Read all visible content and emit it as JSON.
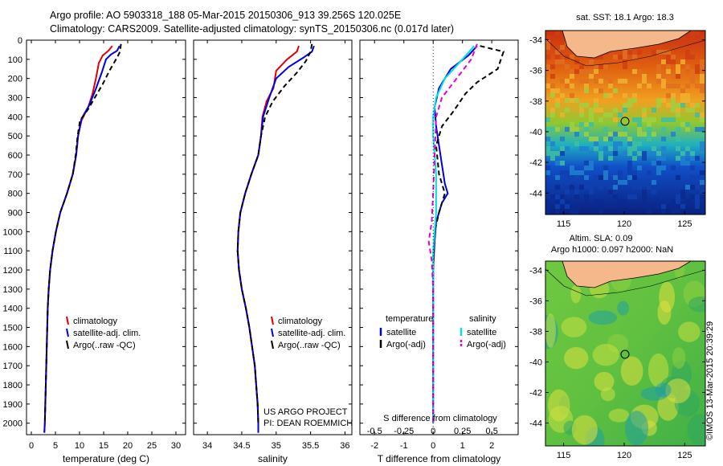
{
  "header": {
    "title_line1": "Argo profile: AO 5903318_188 05-Mar-2015 20150306_913 39.256S 120.025E",
    "title_line2": "Climatology: CARS2009. Satellite-adjusted climatology: synTS_20150306.nc (0.017d later)"
  },
  "footer": {
    "timestamp": "©IMOS 13-Mar-2015 20:39:29",
    "project_line1": "US ARGO PROJECT",
    "project_line2": "PI: DEAN ROEMMICH"
  },
  "colors": {
    "climatology": "#e00000",
    "satellite": "#0000e0",
    "argo": "#000000",
    "sal_satellite": "#00e0e0",
    "sal_argo": "#e000e0"
  },
  "chart_data": [
    {
      "type": "line",
      "panel": "temperature",
      "xlabel": "temperature (deg C)",
      "ylabel": "",
      "xlim": [
        -1,
        32
      ],
      "ylim": [
        2060,
        0
      ],
      "xticks": [
        0,
        5,
        10,
        15,
        20,
        25,
        30
      ],
      "yticks": [
        0,
        100,
        200,
        300,
        400,
        500,
        600,
        700,
        800,
        900,
        1000,
        1100,
        1200,
        1300,
        1400,
        1500,
        1600,
        1700,
        1800,
        1900,
        2000
      ],
      "legend": [
        "climatology",
        "satellite-adj. clim.",
        "Argo(..raw -QC)"
      ],
      "legend_position": "lower-center",
      "series": [
        {
          "name": "climatology",
          "color_key": "climatology",
          "dash": "",
          "points": [
            [
              16.8,
              30
            ],
            [
              16.0,
              55
            ],
            [
              14.8,
              80
            ],
            [
              14.0,
              120
            ],
            [
              13.4,
              200
            ],
            [
              12.7,
              280
            ],
            [
              11.8,
              350
            ],
            [
              10.4,
              420
            ],
            [
              9.7,
              500
            ],
            [
              9.3,
              600
            ],
            [
              8.6,
              700
            ],
            [
              7.4,
              800
            ],
            [
              6.0,
              900
            ],
            [
              5.1,
              1000
            ],
            [
              4.4,
              1100
            ],
            [
              3.9,
              1200
            ],
            [
              3.6,
              1300
            ],
            [
              3.4,
              1400
            ],
            [
              3.2,
              1600
            ],
            [
              3.0,
              1800
            ],
            [
              2.8,
              2000
            ],
            [
              2.7,
              2050
            ]
          ]
        },
        {
          "name": "satellite-adj. clim.",
          "color_key": "satellite",
          "dash": "",
          "points": [
            [
              18.3,
              30
            ],
            [
              17.8,
              55
            ],
            [
              16.5,
              75
            ],
            [
              15.5,
              100
            ],
            [
              14.6,
              170
            ],
            [
              13.3,
              260
            ],
            [
              12.0,
              340
            ],
            [
              10.4,
              410
            ],
            [
              9.7,
              500
            ],
            [
              9.3,
              600
            ],
            [
              8.6,
              700
            ],
            [
              7.4,
              800
            ],
            [
              6.0,
              900
            ],
            [
              5.1,
              1000
            ],
            [
              4.4,
              1100
            ],
            [
              3.9,
              1200
            ],
            [
              3.6,
              1300
            ],
            [
              3.4,
              1400
            ],
            [
              3.2,
              1600
            ],
            [
              3.0,
              1800
            ],
            [
              2.8,
              2000
            ],
            [
              2.7,
              2050
            ]
          ]
        },
        {
          "name": "Argo(..raw -QC)",
          "color_key": "argo",
          "dash": "6,4",
          "points": [
            [
              18.6,
              20
            ],
            [
              18.4,
              60
            ],
            [
              17.8,
              90
            ],
            [
              16.2,
              160
            ],
            [
              14.8,
              230
            ],
            [
              13.4,
              290
            ],
            [
              11.8,
              360
            ],
            [
              10.1,
              420
            ],
            [
              9.6,
              500
            ],
            [
              9.2,
              600
            ],
            [
              8.6,
              700
            ],
            [
              7.4,
              800
            ],
            [
              6.0,
              900
            ],
            [
              5.1,
              1000
            ],
            [
              4.4,
              1100
            ],
            [
              3.9,
              1200
            ],
            [
              3.6,
              1300
            ],
            [
              3.4,
              1400
            ],
            [
              3.2,
              1600
            ],
            [
              3.0,
              1800
            ],
            [
              2.8,
              2000
            ]
          ]
        }
      ]
    },
    {
      "type": "line",
      "panel": "salinity",
      "xlabel": "salinity",
      "xlim": [
        33.8,
        36.1
      ],
      "ylim": [
        2060,
        0
      ],
      "xticks": [
        34,
        34.5,
        35,
        35.5,
        36
      ],
      "legend": [
        "climatology",
        "satellite-adj. clim.",
        "Argo(..raw -QC)"
      ],
      "legend_position": "lower-right",
      "series": [
        {
          "name": "climatology",
          "color_key": "climatology",
          "dash": "",
          "points": [
            [
              35.33,
              30
            ],
            [
              35.3,
              60
            ],
            [
              35.16,
              100
            ],
            [
              35.0,
              160
            ],
            [
              34.96,
              250
            ],
            [
              34.86,
              320
            ],
            [
              34.8,
              400
            ],
            [
              34.78,
              500
            ],
            [
              34.74,
              600
            ],
            [
              34.64,
              700
            ],
            [
              34.55,
              800
            ],
            [
              34.48,
              900
            ],
            [
              34.45,
              1000
            ],
            [
              34.44,
              1100
            ],
            [
              34.46,
              1200
            ],
            [
              34.5,
              1300
            ],
            [
              34.56,
              1400
            ],
            [
              34.61,
              1500
            ],
            [
              34.65,
              1600
            ],
            [
              34.69,
              1700
            ],
            [
              34.71,
              1800
            ],
            [
              34.73,
              1900
            ],
            [
              34.74,
              2000
            ],
            [
              34.74,
              2050
            ]
          ]
        },
        {
          "name": "satellite-adj. clim.",
          "color_key": "satellite",
          "dash": "",
          "points": [
            [
              35.55,
              30
            ],
            [
              35.52,
              60
            ],
            [
              35.4,
              90
            ],
            [
              35.18,
              140
            ],
            [
              35.0,
              200
            ],
            [
              34.9,
              300
            ],
            [
              34.81,
              400
            ],
            [
              34.78,
              500
            ],
            [
              34.74,
              600
            ],
            [
              34.64,
              700
            ],
            [
              34.55,
              800
            ],
            [
              34.48,
              900
            ],
            [
              34.45,
              1000
            ],
            [
              34.44,
              1100
            ],
            [
              34.46,
              1200
            ],
            [
              34.5,
              1300
            ],
            [
              34.56,
              1400
            ],
            [
              34.61,
              1500
            ],
            [
              34.65,
              1600
            ],
            [
              34.69,
              1700
            ],
            [
              34.71,
              1800
            ],
            [
              34.73,
              1900
            ],
            [
              34.74,
              2000
            ],
            [
              34.74,
              2050
            ]
          ]
        },
        {
          "name": "Argo(..raw -QC)",
          "color_key": "argo",
          "dash": "6,4",
          "points": [
            [
              35.52,
              20
            ],
            [
              35.5,
              60
            ],
            [
              35.43,
              110
            ],
            [
              35.3,
              170
            ],
            [
              35.12,
              240
            ],
            [
              34.95,
              320
            ],
            [
              34.84,
              400
            ],
            [
              34.78,
              500
            ],
            [
              34.74,
              600
            ],
            [
              34.64,
              700
            ],
            [
              34.55,
              800
            ],
            [
              34.48,
              900
            ],
            [
              34.45,
              1000
            ],
            [
              34.44,
              1100
            ],
            [
              34.46,
              1200
            ],
            [
              34.5,
              1300
            ],
            [
              34.56,
              1400
            ],
            [
              34.61,
              1500
            ],
            [
              34.65,
              1600
            ],
            [
              34.69,
              1700
            ],
            [
              34.71,
              1800
            ],
            [
              34.73,
              1900
            ],
            [
              34.74,
              2000
            ]
          ]
        }
      ]
    },
    {
      "type": "line",
      "panel": "difference",
      "xlabel": "T difference from climatology",
      "xlabel_top": "S difference from climatology",
      "xlim": [
        -2.5,
        2.9
      ],
      "ylim": [
        2060,
        0
      ],
      "xticks": [
        -2,
        -1,
        0,
        1,
        2
      ],
      "xticks_s": [
        -0.5,
        -0.25,
        0,
        0.25,
        0.5
      ],
      "legend_temperature_title": "temperature",
      "legend_salinity_title": "salinity",
      "legend_temperature": [
        "satellite",
        "Argo(-adj)"
      ],
      "legend_salinity": [
        "satellite",
        "Argo(-adj)"
      ],
      "series": [
        {
          "name": "T satellite",
          "color_key": "satellite",
          "dash": "",
          "points": [
            [
              1.5,
              30
            ],
            [
              1.2,
              80
            ],
            [
              0.6,
              150
            ],
            [
              0.2,
              250
            ],
            [
              0.05,
              350
            ],
            [
              0.1,
              450
            ],
            [
              0.2,
              550
            ],
            [
              0.3,
              650
            ],
            [
              0.4,
              750
            ],
            [
              0.5,
              800
            ],
            [
              0.3,
              850
            ],
            [
              0.1,
              950
            ],
            [
              0.05,
              1050
            ],
            [
              0,
              1200
            ],
            [
              0,
              1500
            ],
            [
              0,
              2000
            ]
          ]
        },
        {
          "name": "T Argo(-adj)",
          "color_key": "argo",
          "dash": "6,4",
          "points": [
            [
              1.6,
              30
            ],
            [
              2.4,
              60
            ],
            [
              2.2,
              150
            ],
            [
              1.5,
              220
            ],
            [
              1.1,
              280
            ],
            [
              0.7,
              370
            ],
            [
              0.3,
              450
            ],
            [
              0.1,
              550
            ],
            [
              0.2,
              700
            ],
            [
              0.4,
              800
            ],
            [
              0.2,
              900
            ],
            [
              0.05,
              1000
            ],
            [
              0,
              1200
            ],
            [
              0,
              1500
            ],
            [
              0,
              2000
            ]
          ]
        },
        {
          "name": "S satellite",
          "color_key": "sal_satellite",
          "dash": "",
          "points": [
            [
              1.4,
              30
            ],
            [
              1.0,
              100
            ],
            [
              0.4,
              200
            ],
            [
              0.1,
              300
            ],
            [
              0,
              400
            ],
            [
              0,
              500
            ],
            [
              0.1,
              700
            ],
            [
              0.1,
              900
            ],
            [
              0,
              1100
            ],
            [
              0,
              1500
            ],
            [
              0,
              2000
            ]
          ]
        },
        {
          "name": "S Argo(-adj)",
          "color_key": "sal_argo",
          "dash": "6,4",
          "points": [
            [
              1.5,
              20
            ],
            [
              1.3,
              100
            ],
            [
              0.8,
              200
            ],
            [
              0.3,
              300
            ],
            [
              0.1,
              400
            ],
            [
              0.05,
              600
            ],
            [
              0,
              800
            ],
            [
              -0.05,
              950
            ],
            [
              -0.15,
              1050
            ],
            [
              -0.05,
              1150
            ],
            [
              0,
              1300
            ],
            [
              0,
              1500
            ],
            [
              0,
              2000
            ]
          ]
        }
      ]
    },
    {
      "type": "heatmap",
      "panel": "sst_map",
      "title": "sat. SST: 18.1 Argo: 18.3",
      "xticks": [
        115,
        120,
        125
      ],
      "yticks": [
        -34,
        -36,
        -38,
        -40,
        -42,
        -44
      ],
      "marker": {
        "lon": 120.0,
        "lat": -39.3
      }
    },
    {
      "type": "heatmap",
      "panel": "sla_map",
      "title_line1": "Altim. SLA: 0.09",
      "title_line2": "Argo h1000: 0.097 h2000: NaN",
      "xticks": [
        115,
        120,
        125
      ],
      "yticks": [
        -34,
        -36,
        -38,
        -40,
        -42,
        -44
      ],
      "marker": {
        "lon": 120.0,
        "lat": -39.3
      }
    }
  ]
}
